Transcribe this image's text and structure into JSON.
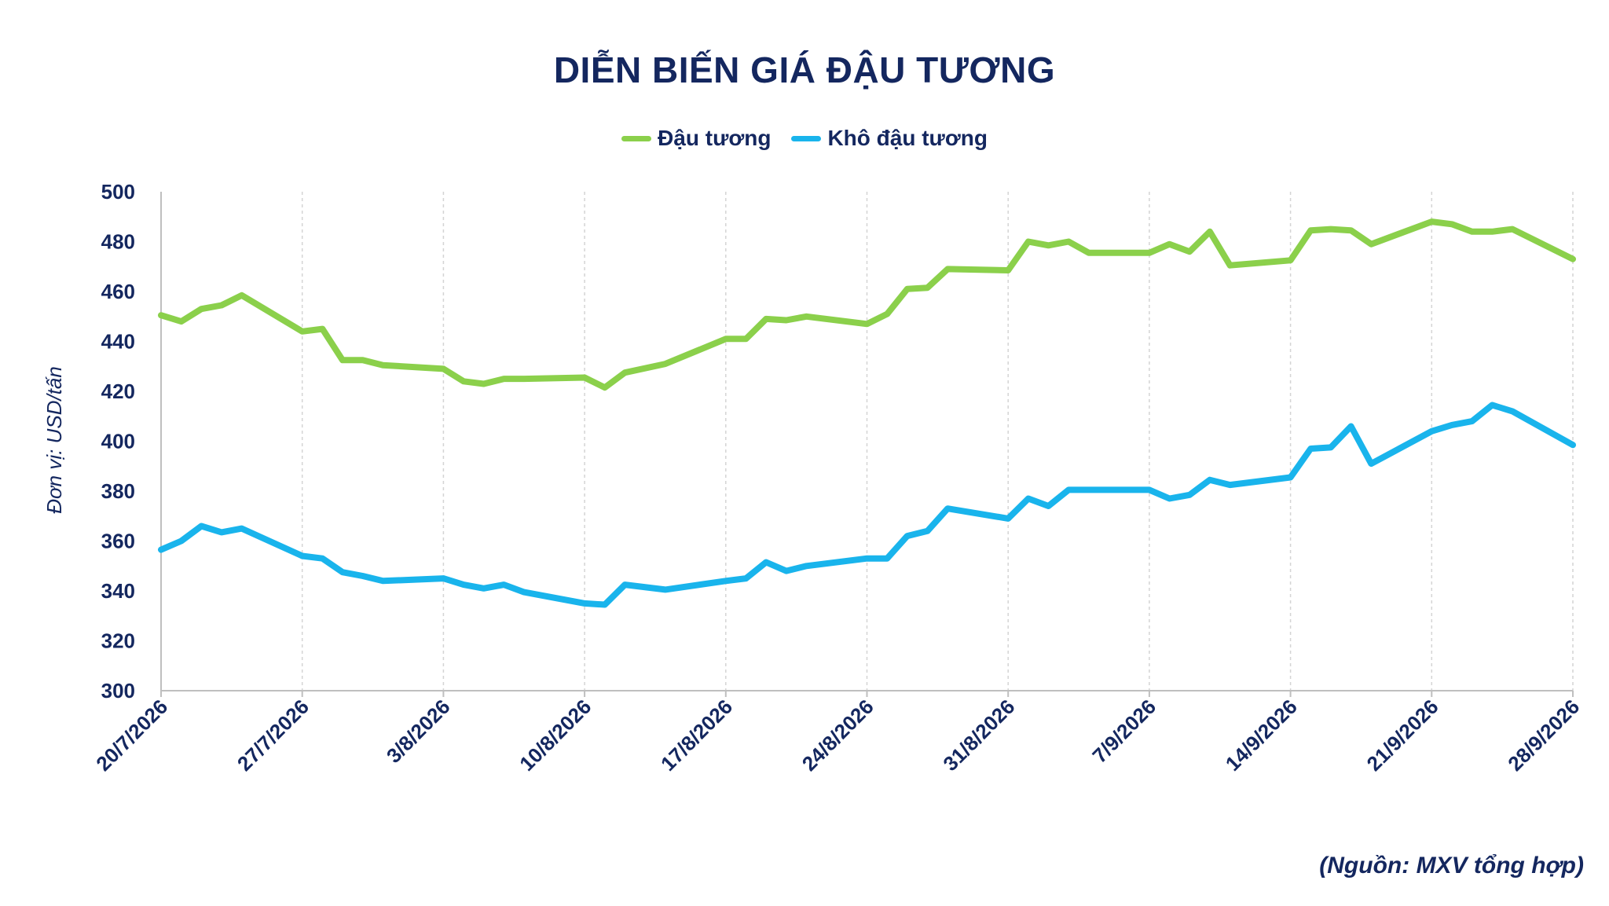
{
  "chart_data": {
    "type": "line",
    "title": "DIỄN BIẾN GIÁ ĐẬU TƯƠNG",
    "ylabel": "Đơn vị: USD/tấn",
    "xlabel": "",
    "ylim": [
      300,
      500
    ],
    "y_ticks": [
      "300",
      "320",
      "340",
      "360",
      "380",
      "400",
      "420",
      "440",
      "460",
      "480",
      "500"
    ],
    "x_tick_labels": [
      "20/7/2026",
      "27/7/2026",
      "3/8/2026",
      "10/8/2026",
      "17/8/2026",
      "24/8/2026",
      "31/8/2026",
      "7/9/2026",
      "14/9/2026",
      "21/9/2026",
      "28/9/2026"
    ],
    "x_range_days": [
      0,
      70
    ],
    "grid": "vertical-dashed",
    "legend_position": "top-center",
    "series": [
      {
        "name": "Đậu tương",
        "color": "#8bd04b",
        "x": [
          0,
          1,
          2,
          3,
          4,
          7,
          8,
          9,
          10,
          11,
          14,
          15,
          16,
          17,
          18,
          21,
          22,
          23,
          25,
          28,
          29,
          30,
          31,
          32,
          35,
          36,
          37,
          38,
          39,
          42,
          43,
          44,
          45,
          46,
          49,
          50,
          51,
          52,
          53,
          56,
          57,
          58,
          59,
          60,
          63,
          64,
          65,
          66,
          67,
          70
        ],
        "values": [
          450.5,
          448,
          453,
          454.5,
          458.5,
          444,
          445,
          432.5,
          432.5,
          430.5,
          429,
          424,
          423,
          425,
          425,
          425.5,
          421.5,
          427.5,
          431,
          441,
          441,
          449,
          448.5,
          450,
          447,
          451,
          461,
          461.5,
          469,
          468.5,
          480,
          478.5,
          480,
          475.5,
          475.5,
          479,
          476,
          484,
          470.5,
          472.5,
          484.5,
          485,
          484.5,
          479,
          488,
          487,
          484,
          484,
          485,
          473
        ]
      },
      {
        "name": "Khô đậu tương",
        "color": "#19b4ec",
        "x": [
          0,
          1,
          2,
          3,
          4,
          7,
          8,
          9,
          10,
          11,
          14,
          15,
          16,
          17,
          18,
          21,
          22,
          23,
          25,
          28,
          29,
          30,
          31,
          32,
          35,
          36,
          37,
          38,
          39,
          42,
          43,
          44,
          45,
          46,
          49,
          50,
          51,
          52,
          53,
          56,
          57,
          58,
          59,
          60,
          63,
          64,
          65,
          66,
          67,
          70
        ],
        "values": [
          356.5,
          360,
          366,
          363.5,
          365,
          354,
          353,
          347.5,
          346,
          344,
          345,
          342.5,
          341,
          342.5,
          339.5,
          335,
          334.5,
          342.5,
          340.5,
          344,
          345,
          351.5,
          348,
          350,
          353,
          353,
          362,
          364,
          373,
          369,
          377,
          374,
          380.5,
          380.5,
          380.5,
          377,
          378.5,
          384.5,
          382.5,
          385.5,
          397,
          397.5,
          406,
          391,
          404,
          406.5,
          408,
          414.5,
          412,
          398.5
        ]
      }
    ]
  },
  "footer": {
    "source": "(Nguồn: MXV tổng hợp)"
  }
}
